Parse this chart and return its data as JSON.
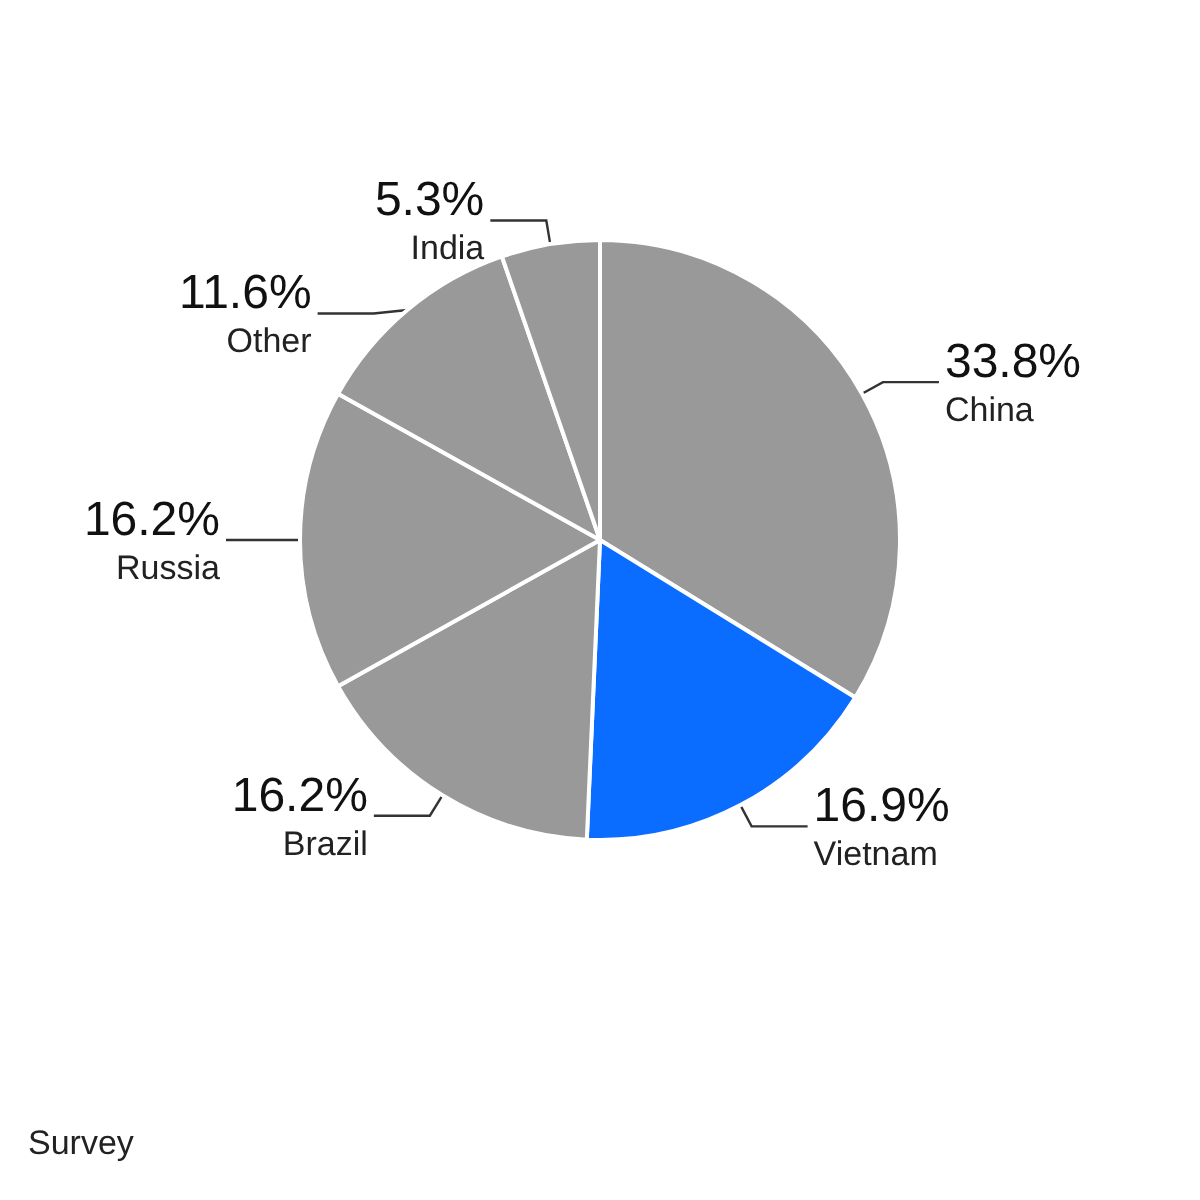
{
  "chart_data": {
    "type": "pie",
    "categories": [
      "China",
      "Vietnam",
      "Brazil",
      "Russia",
      "Other",
      "India"
    ],
    "values": [
      33.8,
      16.9,
      16.2,
      16.2,
      11.6,
      5.3
    ],
    "value_labels": [
      "33.8%",
      "16.9%",
      "16.2%",
      "16.2%",
      "11.6%",
      "5.3%"
    ],
    "colors": [
      "#999999",
      "#0a6dff",
      "#999999",
      "#999999",
      "#999999",
      "#999999"
    ],
    "annotations": [
      "Survey"
    ],
    "legend": false
  }
}
